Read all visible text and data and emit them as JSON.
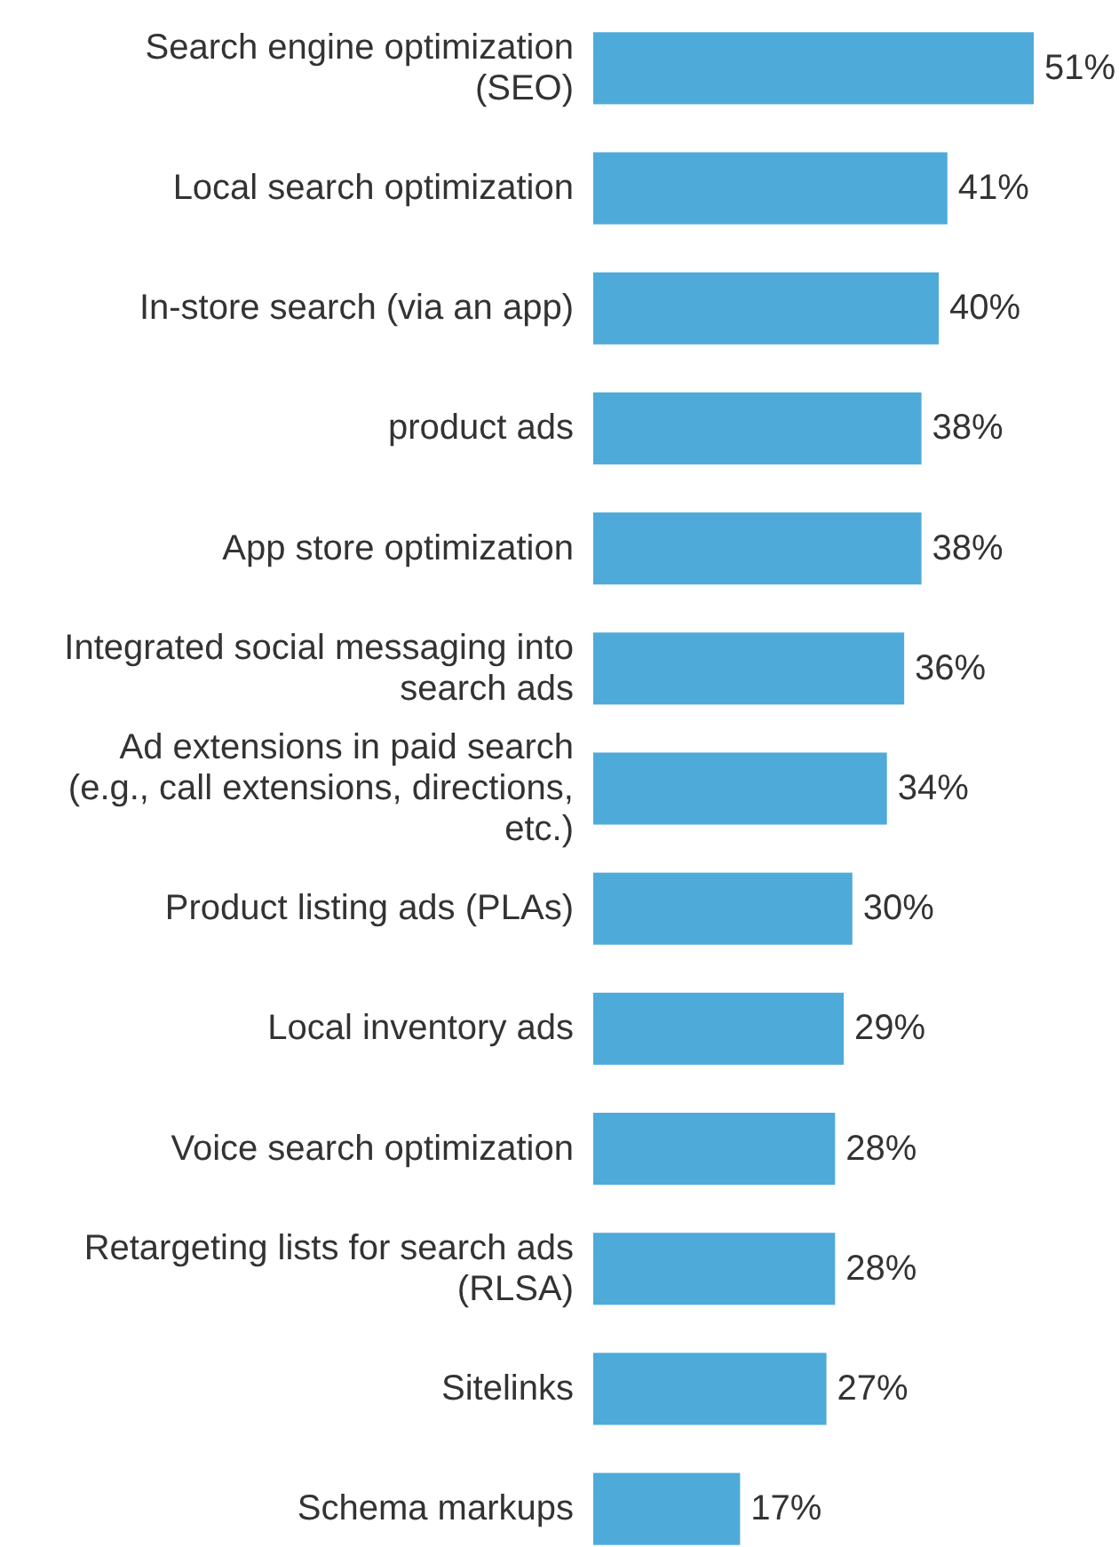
{
  "chart_data": {
    "type": "bar",
    "orientation": "horizontal",
    "color": "#4eaad9",
    "categories": [
      "Search engine optimization (SEO)",
      "Local search optimization",
      "In-store search (via an app)",
      "product ads",
      "App store optimization",
      "Integrated social messaging into search ads",
      "Ad extensions in paid search (e.g., call extensions, directions, etc.)",
      "Product listing ads (PLAs)",
      "Local inventory ads",
      "Voice search optimization",
      "Retargeting lists for search ads (RLSA)",
      "Sitelinks",
      "Schema markups"
    ],
    "values": [
      51,
      41,
      40,
      38,
      38,
      36,
      34,
      30,
      29,
      28,
      28,
      27,
      17
    ],
    "value_labels": [
      "51%",
      "41%",
      "40%",
      "38%",
      "38%",
      "36%",
      "34%",
      "30%",
      "29%",
      "28%",
      "28%",
      "27%",
      "17%"
    ],
    "xlim": [
      0,
      51
    ]
  }
}
